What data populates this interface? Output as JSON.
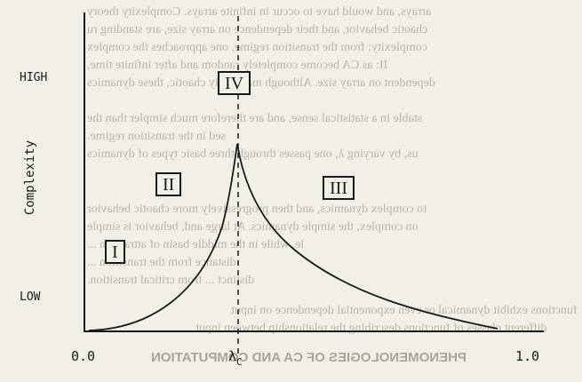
{
  "bleed_through": [
    "arrays, and would have to occur in infinite arrays. Complexity theory",
    "chaotic behavior, and their dependence on array size, are standing ru",
    "complexity: from the transition regime, one approaches the complex",
    "II: as CA become completely random and after infinite time,",
    "dependent on array size. Although maximally chaotic, these dynamics",
    "stable in a statistical sense, and are therefore much simpler than the",
    "sed in the transition regime.",
    "us, by varying λ, one passes through three basic types of dynamics",
    "to complex dynamics, and then progressively more chaotic behavior",
    "on complex, the simple dynamics. At large and, behavior is simple",
    "le, while in the middle basin of attraction ...",
    "distance from the transition ...",
    "distinct ... from critical transition.",
    "functions exhibit dynamical or even exponential dependence on input",
    "different classes of functions describing the relationship between input"
  ],
  "bleed_caption": "PHENOMENOLOGIES OF CA AND COMPUTATION",
  "diagram": {
    "y_axis_title": "Complexity",
    "y_high": "HIGH",
    "y_low": "LOW",
    "x_tick_start": "0.0",
    "x_tick_critical_symbol": "λ",
    "x_tick_critical_sub": "C",
    "x_tick_end": "1.0",
    "regions": [
      "I",
      "II",
      "III",
      "IV"
    ]
  }
}
